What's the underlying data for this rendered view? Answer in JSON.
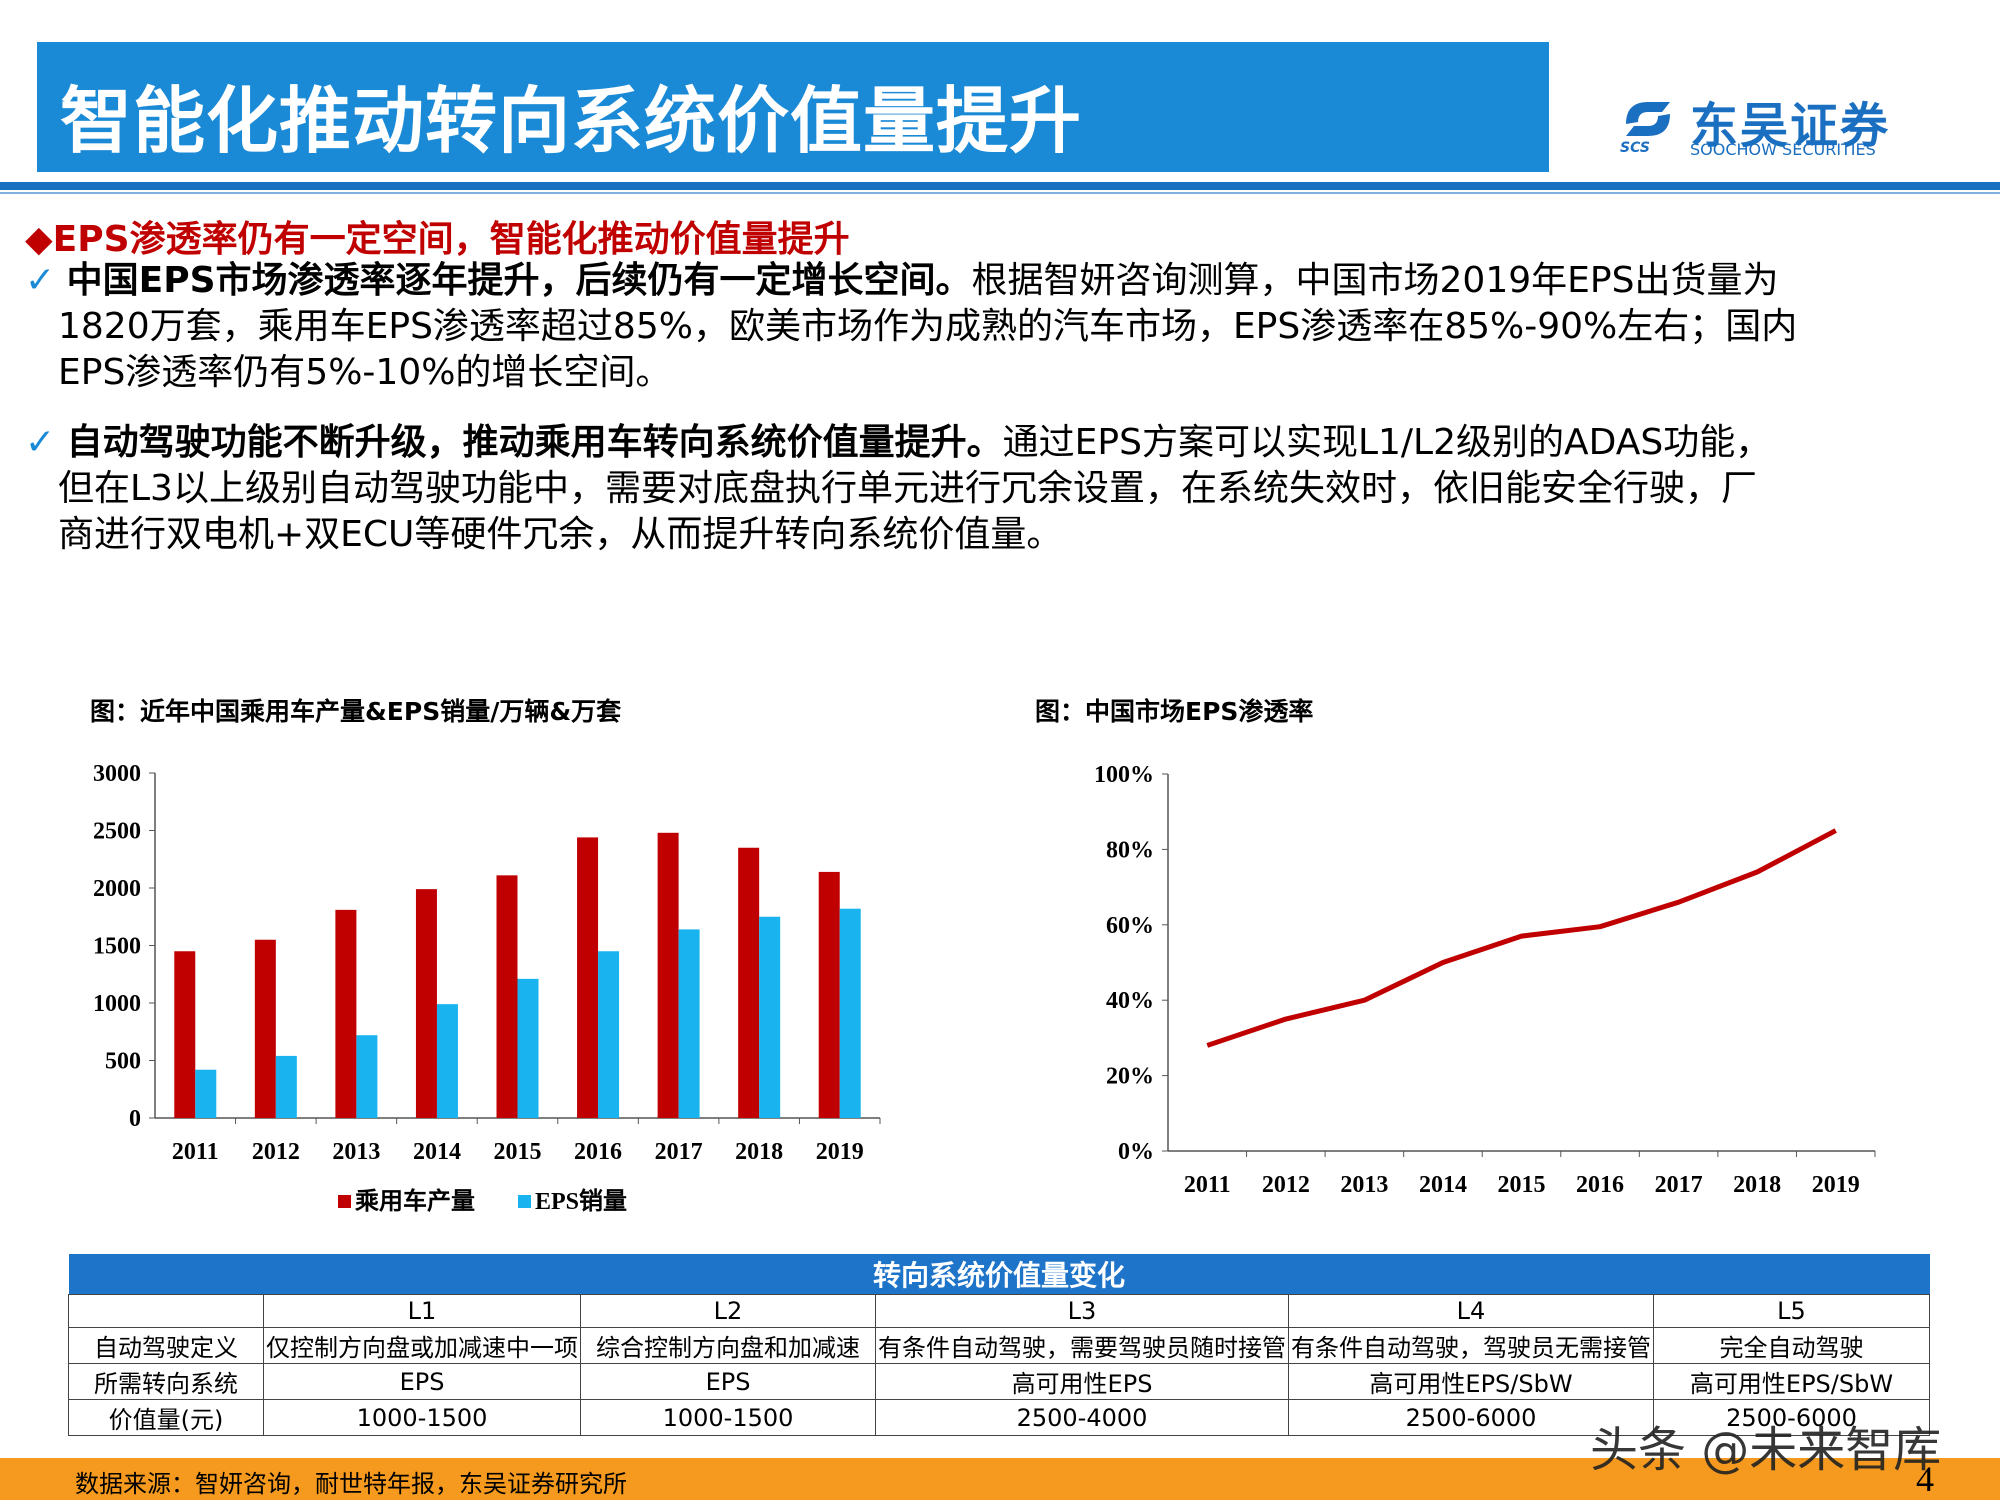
{
  "header": {
    "title": "智能化推动转向系统价值量提升",
    "logo_cn": "东吴证券",
    "logo_en": "SOOCHOW SECURITIES",
    "logo_abbr": "SCS"
  },
  "section": {
    "heading": "◆EPS渗透率仍有一定空间，智能化推动价值量提升",
    "check": "✓",
    "p1_bold": "中国EPS市场渗透率逐年提升，后续仍有一定增长空间。",
    "p1_line1": "根据智妍咨询测算，中国市场2019年EPS出货量为",
    "p1_line2": "1820万套，乘用车EPS渗透率超过85%，欧美市场作为成熟的汽车市场，EPS渗透率在85%-90%左右；国内",
    "p1_line3": "EPS渗透率仍有5%-10%的增长空间。",
    "p2_bold": "自动驾驶功能不断升级，推动乘用车转向系统价值量提升。",
    "p2_line1": "通过EPS方案可以实现L1/L2级别的ADAS功能，",
    "p2_line2": "但在L3以上级别自动驾驶功能中，需要对底盘执行单元进行冗余设置，在系统失效时，依旧能安全行驶，厂",
    "p2_line3": "商进行双电机+双ECU等硬件冗余，从而提升转向系统价值量。"
  },
  "figures": {
    "left_title": "图：近年中国乘用车产量&EPS销量/万辆&万套",
    "right_title": "图：中国市场EPS渗透率"
  },
  "chart_data": [
    {
      "type": "bar",
      "categories": [
        "2011",
        "2012",
        "2013",
        "2014",
        "2015",
        "2016",
        "2017",
        "2018",
        "2019"
      ],
      "series": [
        {
          "name": "乘用车产量",
          "color": "#c00000",
          "values": [
            1450,
            1550,
            1810,
            1990,
            2110,
            2440,
            2480,
            2350,
            2140
          ]
        },
        {
          "name": "EPS销量",
          "color": "#19b4f0",
          "values": [
            420,
            540,
            720,
            990,
            1210,
            1450,
            1640,
            1750,
            1820
          ]
        }
      ],
      "ylim": [
        0,
        3000
      ],
      "yticks": [
        "0",
        "500",
        "1000",
        "1500",
        "2000",
        "2500",
        "3000"
      ],
      "legend": "bottom"
    },
    {
      "type": "line",
      "categories": [
        "2011",
        "2012",
        "2013",
        "2014",
        "2015",
        "2016",
        "2017",
        "2018",
        "2019"
      ],
      "series": [
        {
          "color": "#c00000",
          "values": [
            28,
            35,
            40,
            50,
            57,
            59.5,
            66,
            74,
            85
          ]
        }
      ],
      "ylim": [
        0,
        100
      ],
      "yticks": [
        "0%",
        "20%",
        "40%",
        "60%",
        "80%",
        "100%"
      ]
    }
  ],
  "table": {
    "title": "转向系统价值量变化",
    "levels": [
      "L1",
      "L2",
      "L3",
      "L4",
      "L5"
    ],
    "rows": [
      {
        "label": "自动驾驶定义",
        "cells": [
          "仅控制方向盘或加减速中一项",
          "综合控制方向盘和加减速",
          "有条件自动驾驶，需要驾驶员随时接管",
          "有条件自动驾驶，驾驶员无需接管",
          "完全自动驾驶"
        ]
      },
      {
        "label": "所需转向系统",
        "cells": [
          "EPS",
          "EPS",
          "高可用性EPS",
          "高可用性EPS/SbW",
          "高可用性EPS/SbW"
        ]
      },
      {
        "label": "价值量(元)",
        "cells": [
          "1000-1500",
          "1000-1500",
          "2500-4000",
          "2500-6000",
          "2500-6000"
        ]
      }
    ]
  },
  "footer": {
    "source": "数据来源：智妍咨询，耐世特年报，东吴证券研究所",
    "page": "4",
    "watermark": "头条 @未来智库"
  }
}
